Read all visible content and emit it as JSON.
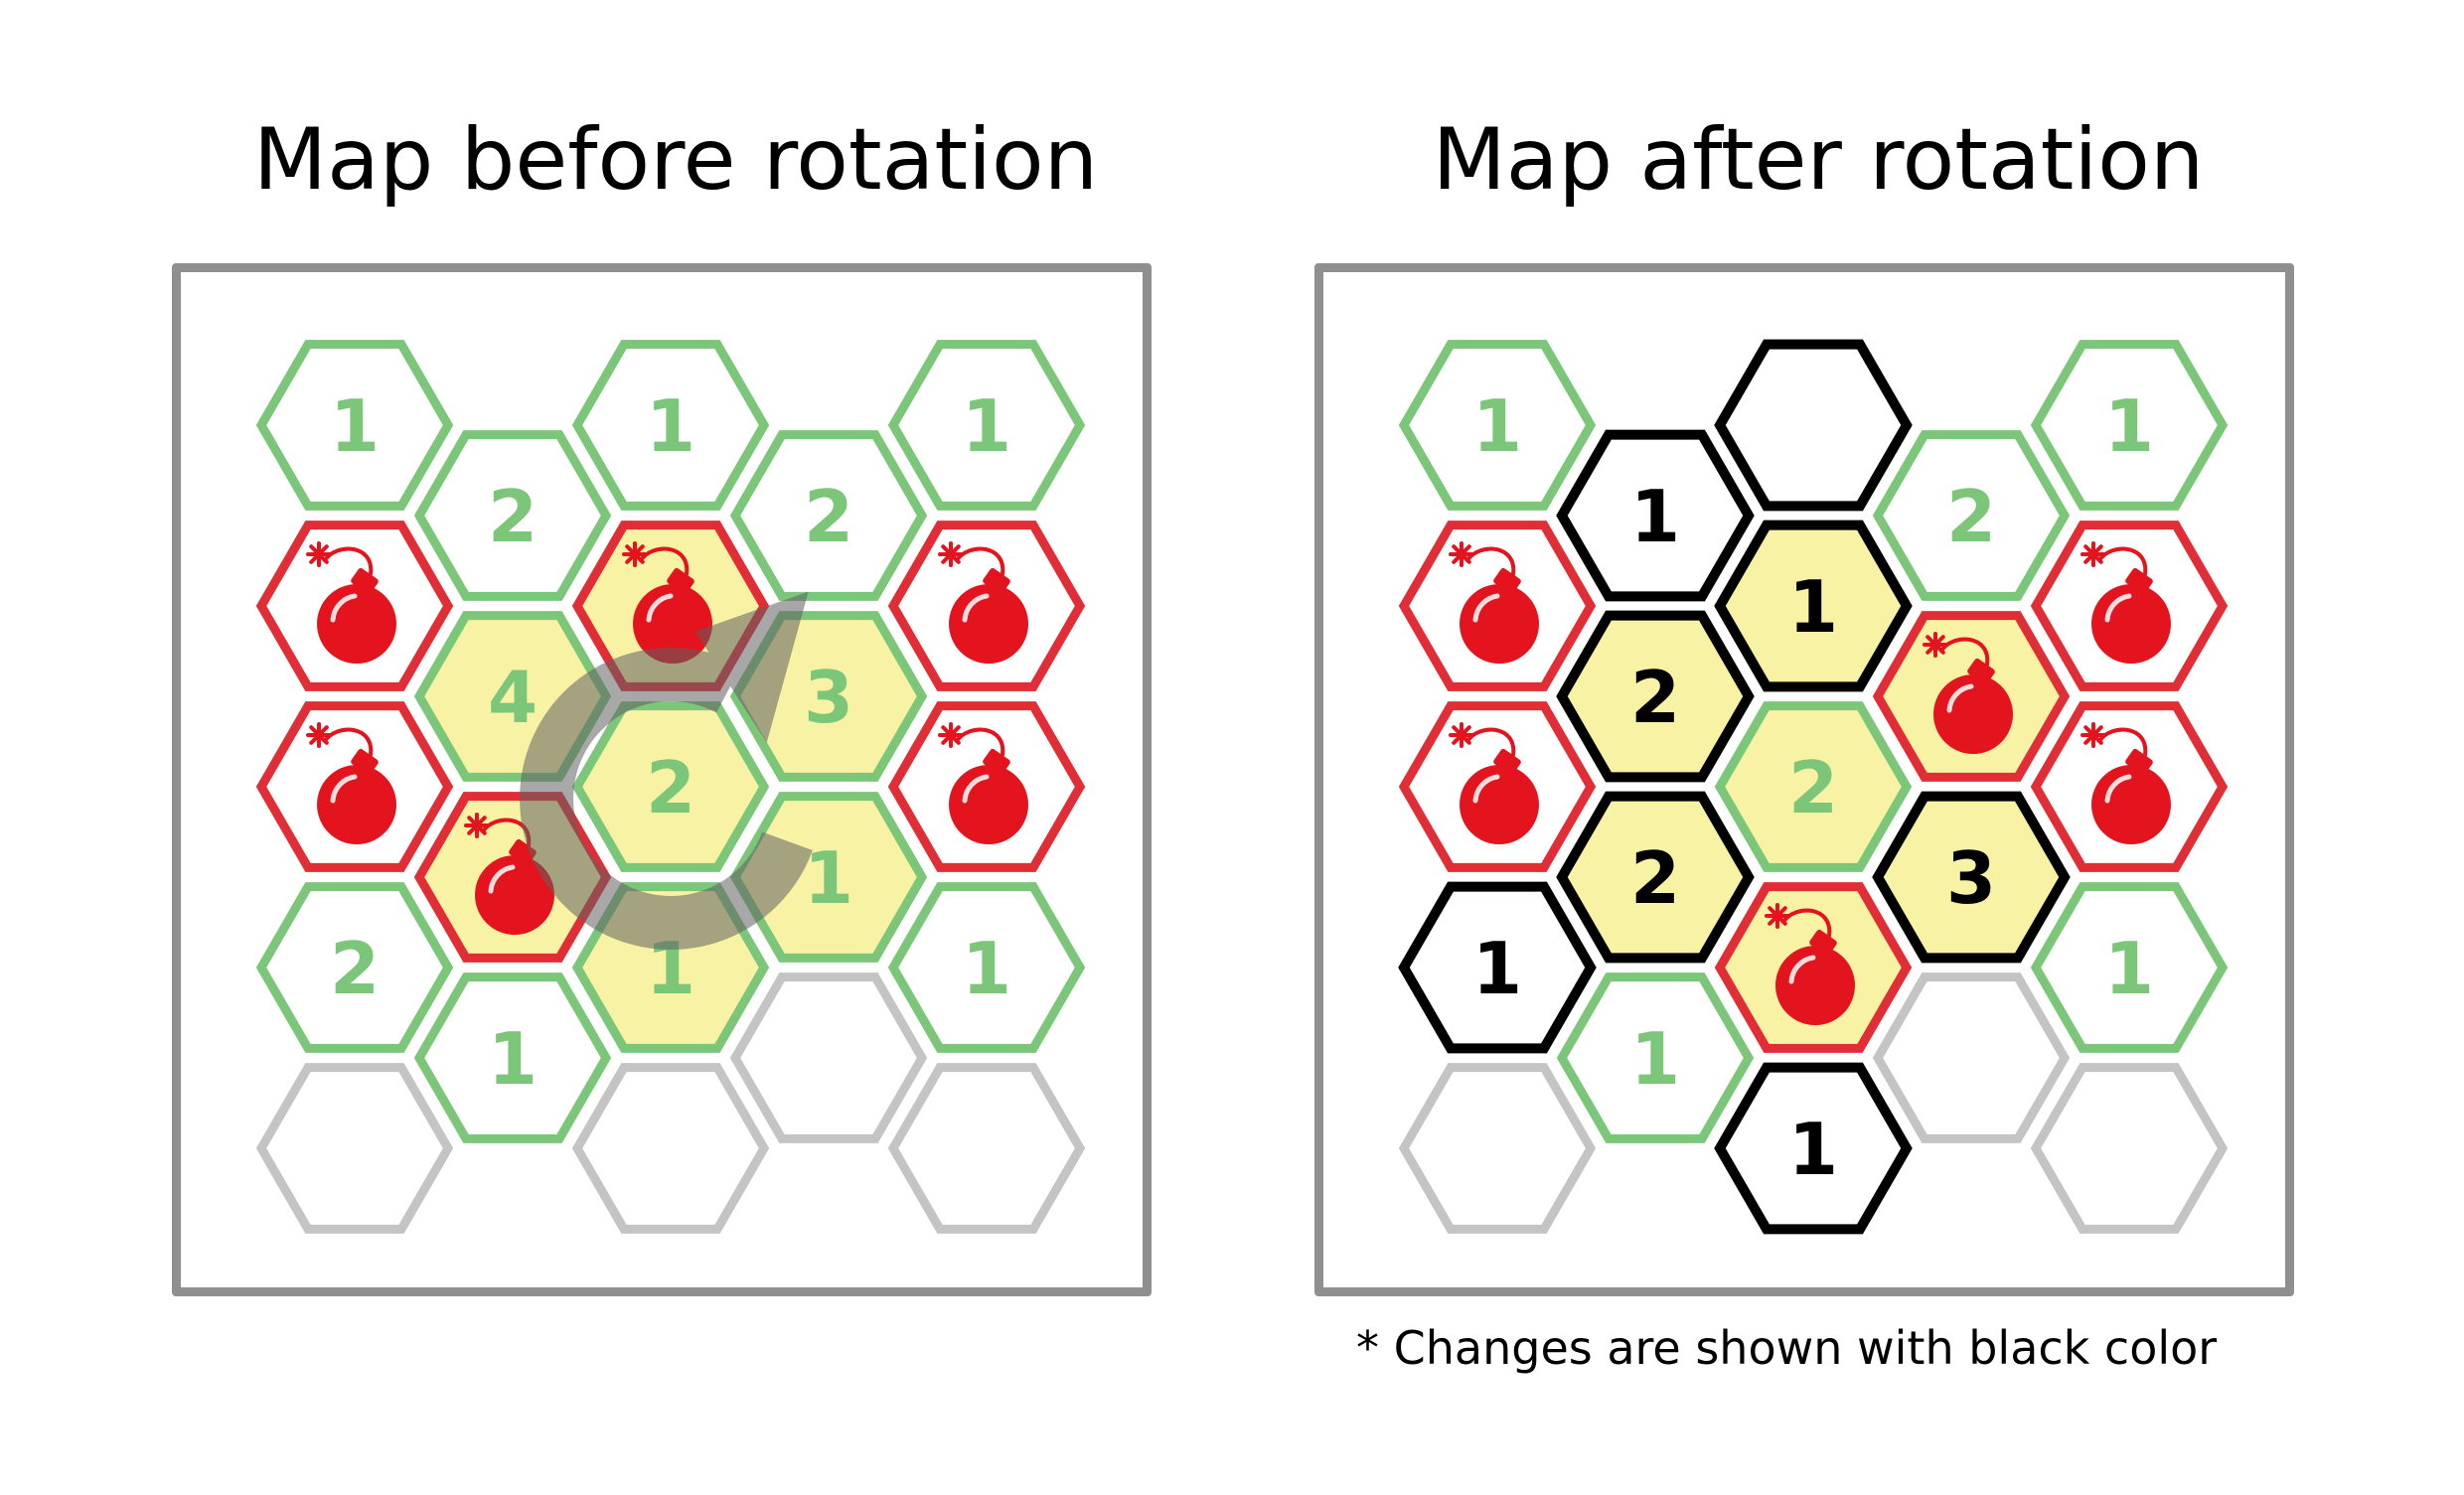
{
  "titles": {
    "before": "Map before rotation",
    "after": "Map after rotation"
  },
  "note": "* Changes are shown with black color",
  "colors": {
    "safe": "#7cc67a",
    "bomb": "#e12e36",
    "empty": "#c4c4c4",
    "changed": "#000000",
    "highlight": "#f8f2a4",
    "bomb_body": "#e3141e",
    "arrow": "#606060",
    "panel_border": "#8f8f8f"
  },
  "maps": {
    "before": {
      "tiles": [
        {
          "col": 0,
          "row": 0,
          "type": "number",
          "value": "1",
          "state": "safe"
        },
        {
          "col": 0,
          "row": 1,
          "type": "bomb",
          "state": "bomb"
        },
        {
          "col": 0,
          "row": 2,
          "type": "bomb",
          "state": "bomb"
        },
        {
          "col": 0,
          "row": 3,
          "type": "number",
          "value": "2",
          "state": "safe"
        },
        {
          "col": 0,
          "row": 4,
          "type": "empty",
          "state": "empty"
        },
        {
          "col": 1,
          "row": 0,
          "type": "number",
          "value": "2",
          "state": "safe"
        },
        {
          "col": 1,
          "row": 1,
          "type": "number",
          "value": "4",
          "state": "safe",
          "highlight": true
        },
        {
          "col": 1,
          "row": 2,
          "type": "bomb",
          "state": "bomb",
          "highlight": true
        },
        {
          "col": 1,
          "row": 3,
          "type": "number",
          "value": "1",
          "state": "safe"
        },
        {
          "col": 2,
          "row": 0,
          "type": "number",
          "value": "1",
          "state": "safe"
        },
        {
          "col": 2,
          "row": 1,
          "type": "bomb",
          "state": "bomb",
          "highlight": true
        },
        {
          "col": 2,
          "row": 2,
          "type": "number",
          "value": "2",
          "state": "safe",
          "highlight": true
        },
        {
          "col": 2,
          "row": 3,
          "type": "number",
          "value": "1",
          "state": "safe",
          "highlight": true
        },
        {
          "col": 2,
          "row": 4,
          "type": "empty",
          "state": "empty"
        },
        {
          "col": 3,
          "row": 0,
          "type": "number",
          "value": "2",
          "state": "safe"
        },
        {
          "col": 3,
          "row": 1,
          "type": "number",
          "value": "3",
          "state": "safe",
          "highlight": true
        },
        {
          "col": 3,
          "row": 2,
          "type": "number",
          "value": "1",
          "state": "safe",
          "highlight": true
        },
        {
          "col": 3,
          "row": 3,
          "type": "empty",
          "state": "empty"
        },
        {
          "col": 4,
          "row": 0,
          "type": "number",
          "value": "1",
          "state": "safe"
        },
        {
          "col": 4,
          "row": 1,
          "type": "bomb",
          "state": "bomb"
        },
        {
          "col": 4,
          "row": 2,
          "type": "bomb",
          "state": "bomb"
        },
        {
          "col": 4,
          "row": 3,
          "type": "number",
          "value": "1",
          "state": "safe"
        },
        {
          "col": 4,
          "row": 4,
          "type": "empty",
          "state": "empty"
        }
      ],
      "rotation_arrow": true
    },
    "after": {
      "tiles": [
        {
          "col": 0,
          "row": 0,
          "type": "number",
          "value": "1",
          "state": "safe"
        },
        {
          "col": 0,
          "row": 1,
          "type": "bomb",
          "state": "bomb"
        },
        {
          "col": 0,
          "row": 2,
          "type": "bomb",
          "state": "bomb"
        },
        {
          "col": 0,
          "row": 3,
          "type": "number",
          "value": "1",
          "state": "changed"
        },
        {
          "col": 0,
          "row": 4,
          "type": "empty",
          "state": "empty"
        },
        {
          "col": 1,
          "row": 0,
          "type": "number",
          "value": "1",
          "state": "changed"
        },
        {
          "col": 1,
          "row": 1,
          "type": "number",
          "value": "2",
          "state": "changed",
          "highlight": true
        },
        {
          "col": 1,
          "row": 2,
          "type": "number",
          "value": "2",
          "state": "changed",
          "highlight": true
        },
        {
          "col": 1,
          "row": 3,
          "type": "number",
          "value": "1",
          "state": "safe"
        },
        {
          "col": 2,
          "row": 0,
          "type": "empty",
          "state": "changed"
        },
        {
          "col": 2,
          "row": 1,
          "type": "number",
          "value": "1",
          "state": "changed",
          "highlight": true
        },
        {
          "col": 2,
          "row": 2,
          "type": "number",
          "value": "2",
          "state": "safe",
          "highlight": true
        },
        {
          "col": 2,
          "row": 3,
          "type": "bomb",
          "state": "bomb",
          "highlight": true
        },
        {
          "col": 2,
          "row": 4,
          "type": "number",
          "value": "1",
          "state": "changed"
        },
        {
          "col": 3,
          "row": 0,
          "type": "number",
          "value": "2",
          "state": "safe"
        },
        {
          "col": 3,
          "row": 1,
          "type": "bomb",
          "state": "bomb",
          "highlight": true
        },
        {
          "col": 3,
          "row": 2,
          "type": "number",
          "value": "3",
          "state": "changed",
          "highlight": true
        },
        {
          "col": 3,
          "row": 3,
          "type": "empty",
          "state": "empty"
        },
        {
          "col": 4,
          "row": 0,
          "type": "number",
          "value": "1",
          "state": "safe"
        },
        {
          "col": 4,
          "row": 1,
          "type": "bomb",
          "state": "bomb"
        },
        {
          "col": 4,
          "row": 2,
          "type": "bomb",
          "state": "bomb"
        },
        {
          "col": 4,
          "row": 3,
          "type": "number",
          "value": "1",
          "state": "safe"
        },
        {
          "col": 4,
          "row": 4,
          "type": "empty",
          "state": "empty"
        }
      ],
      "rotation_arrow": false
    }
  }
}
